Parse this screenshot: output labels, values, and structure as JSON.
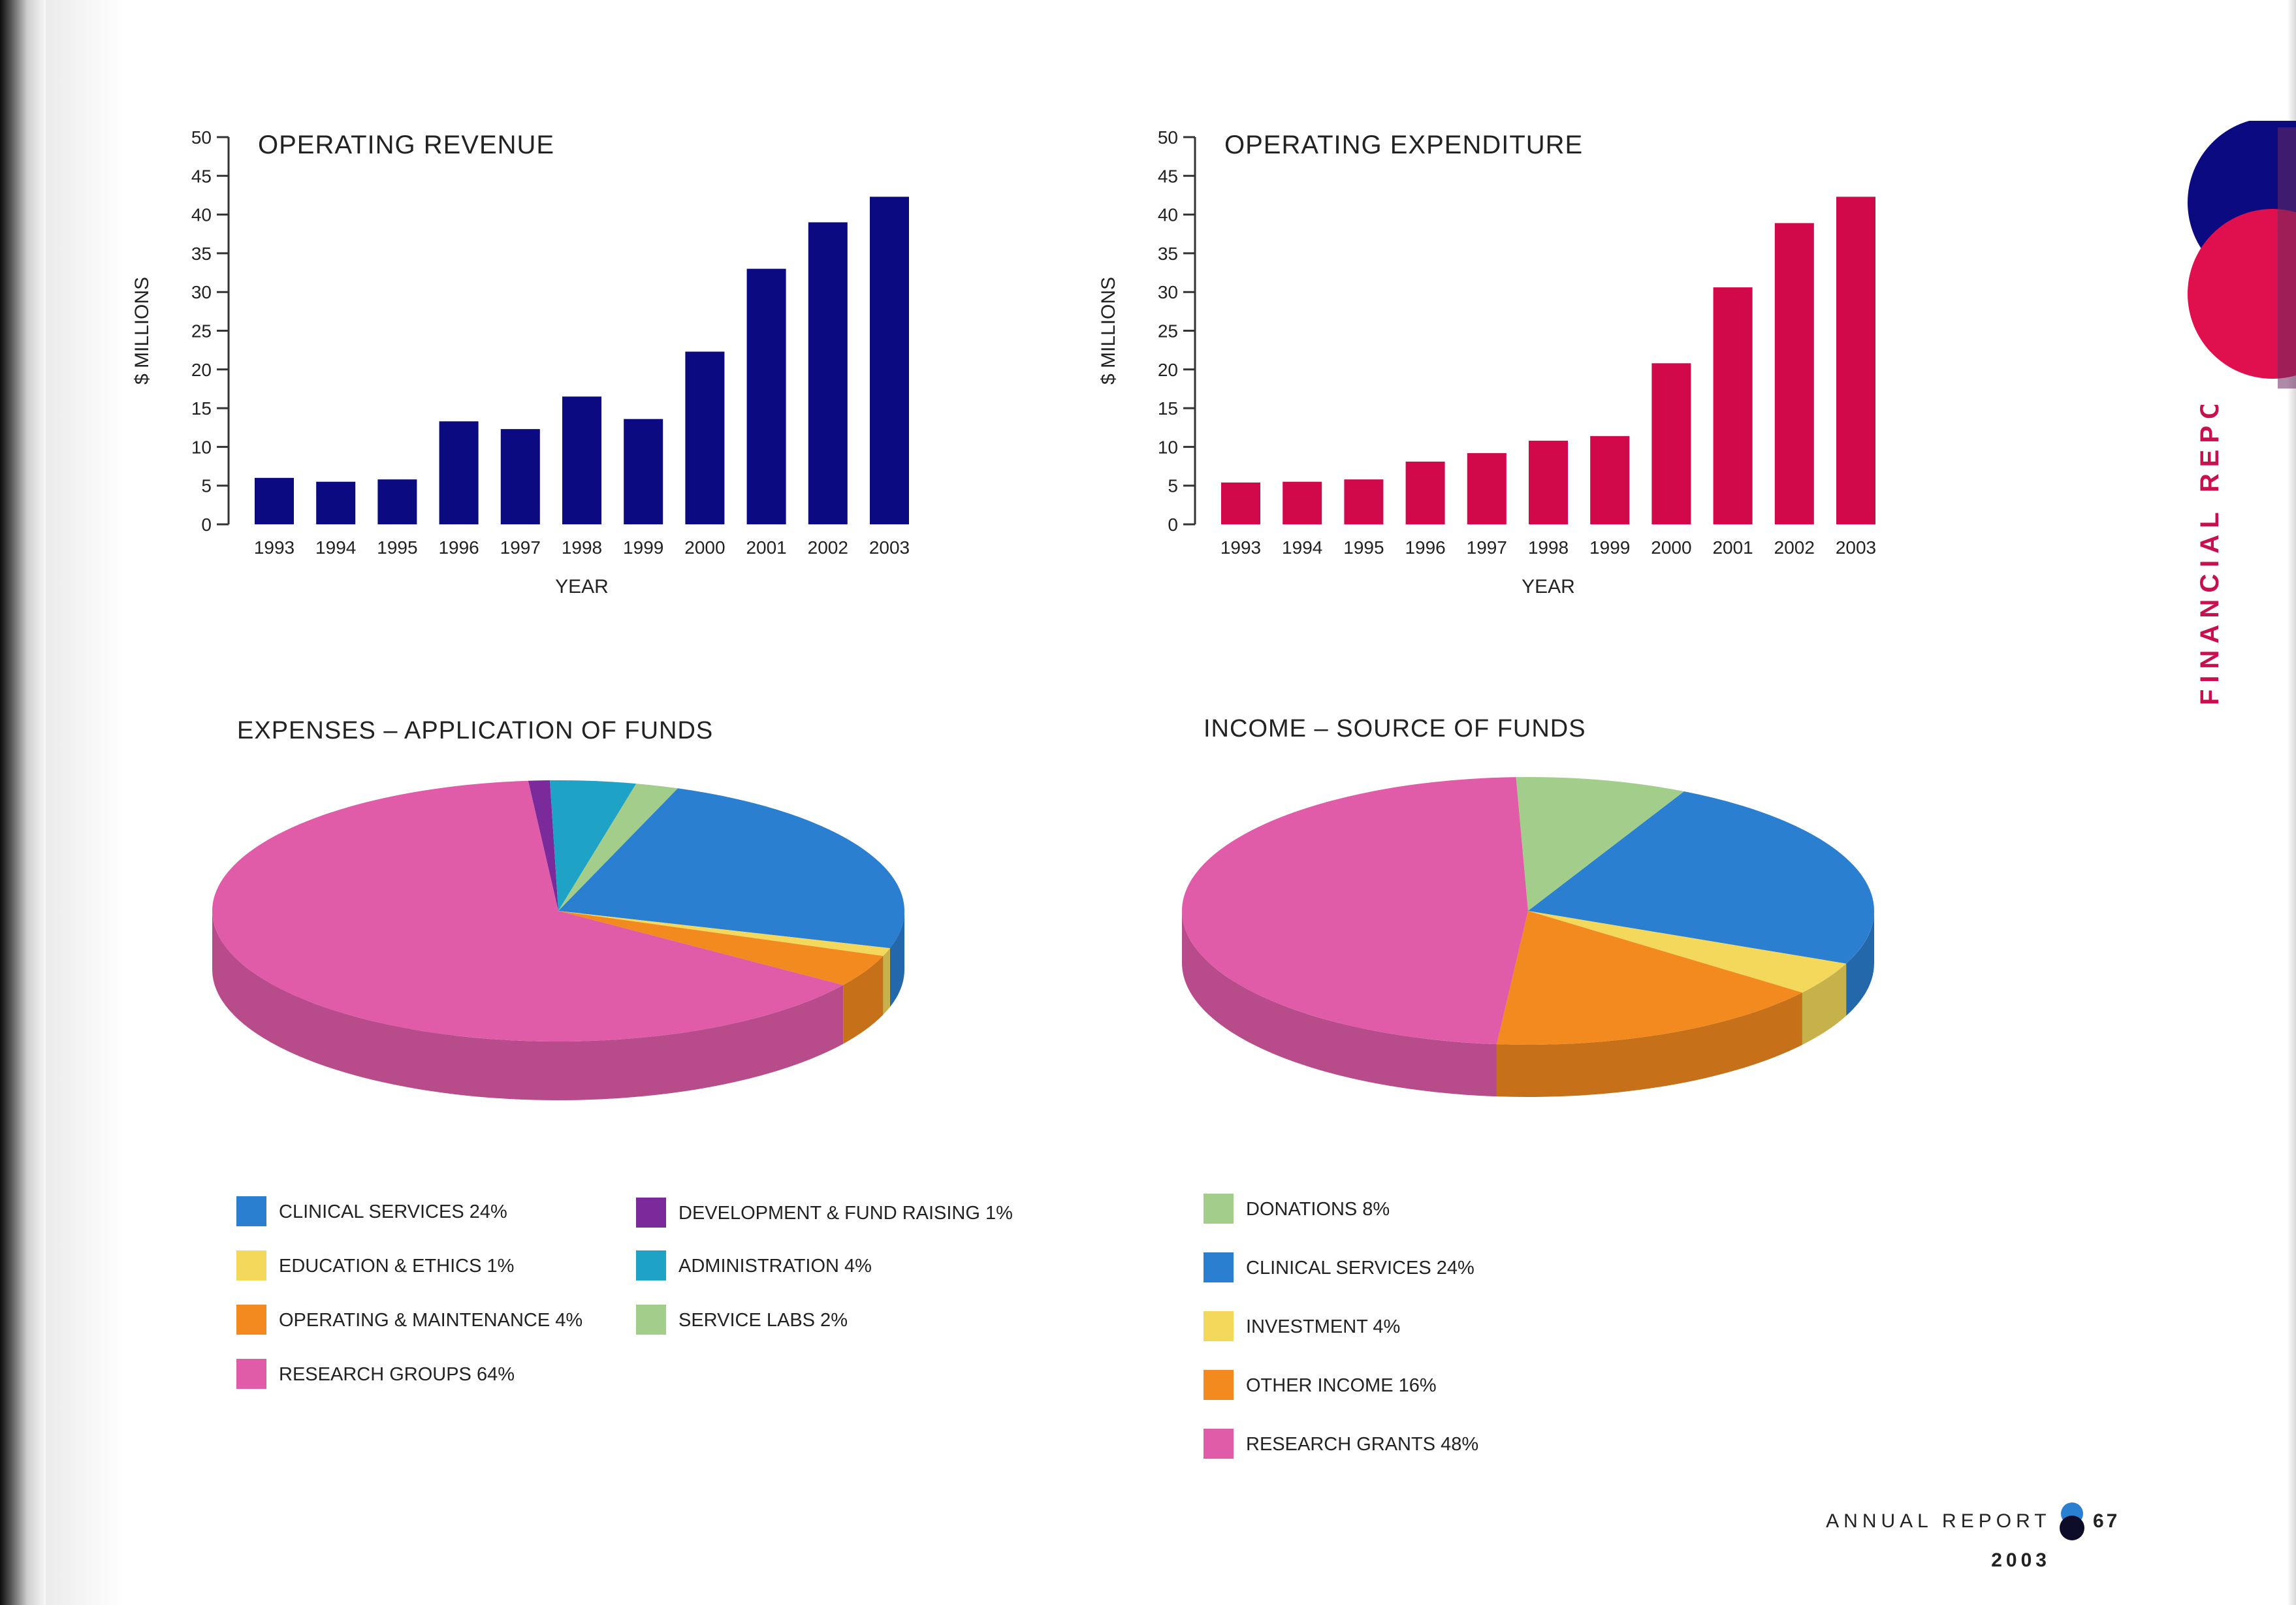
{
  "page": {
    "side_title": "FINANCIAL REPORT",
    "footer_label": "ANNUAL REPORT",
    "footer_year": "2003",
    "page_number": "67"
  },
  "colors": {
    "revenue_bar": "#0b0a80",
    "expenditure_bar": "#d1094a",
    "side_title": "#c8104f",
    "axis": "#333333"
  },
  "chart_data": [
    {
      "id": "operating-revenue",
      "type": "bar",
      "title": "OPERATING REVENUE",
      "xlabel": "YEAR",
      "ylabel": "$ MILLIONS",
      "categories": [
        "1993",
        "1994",
        "1995",
        "1996",
        "1997",
        "1998",
        "1999",
        "2000",
        "2001",
        "2002",
        "2003"
      ],
      "values": [
        6,
        5.5,
        5.8,
        13.3,
        12.3,
        16.5,
        13.6,
        22.3,
        33,
        39,
        42.3
      ],
      "ylim": [
        0,
        50
      ],
      "yticks": [
        0,
        5,
        10,
        15,
        20,
        25,
        30,
        35,
        40,
        45,
        50
      ],
      "color": "#0b0a80",
      "grid": false
    },
    {
      "id": "operating-expenditure",
      "type": "bar",
      "title": "OPERATING EXPENDITURE",
      "xlabel": "YEAR",
      "ylabel": "$ MILLIONS",
      "categories": [
        "1993",
        "1994",
        "1995",
        "1996",
        "1997",
        "1998",
        "1999",
        "2000",
        "2001",
        "2002",
        "2003"
      ],
      "values": [
        5.4,
        5.5,
        5.8,
        8.1,
        9.2,
        10.8,
        11.4,
        20.8,
        30.6,
        38.9,
        42.3
      ],
      "ylim": [
        0,
        50
      ],
      "yticks": [
        0,
        5,
        10,
        15,
        20,
        25,
        30,
        35,
        40,
        45,
        50
      ],
      "color": "#d1094a",
      "grid": false
    },
    {
      "id": "expenses",
      "type": "pie",
      "title": "EXPENSES – APPLICATION OF FUNDS",
      "slices": [
        {
          "label": "DEVELOPMENT & FUND RAISING",
          "value": 1,
          "color": "#7a2a9a"
        },
        {
          "label": "ADMINISTRATION",
          "value": 4,
          "color": "#1ea3c6"
        },
        {
          "label": "SERVICE LABS",
          "value": 2,
          "color": "#a3cd8a"
        },
        {
          "label": "CLINICAL SERVICES",
          "value": 24,
          "color": "#2a7fd0"
        },
        {
          "label": "EDUCATION & ETHICS",
          "value": 1,
          "color": "#f3d85c"
        },
        {
          "label": "OPERATING & MAINTENANCE",
          "value": 4,
          "color": "#f28a1f"
        },
        {
          "label": "RESEARCH GROUPS",
          "value": 64,
          "color": "#e05ba8"
        }
      ],
      "legend": [
        {
          "text": "CLINICAL SERVICES 24%",
          "color": "#2a7fd0"
        },
        {
          "text": "EDUCATION & ETHICS 1%",
          "color": "#f3d85c"
        },
        {
          "text": "OPERATING & MAINTENANCE 4%",
          "color": "#f28a1f"
        },
        {
          "text": "RESEARCH GROUPS 64%",
          "color": "#e05ba8"
        },
        {
          "text": "DEVELOPMENT & FUND RAISING 1%",
          "color": "#7a2a9a"
        },
        {
          "text": "ADMINISTRATION 4%",
          "color": "#1ea3c6"
        },
        {
          "text": "SERVICE LABS 2%",
          "color": "#a3cd8a"
        }
      ]
    },
    {
      "id": "income",
      "type": "pie",
      "title": "INCOME – SOURCE OF FUNDS",
      "slices": [
        {
          "label": "DONATIONS",
          "value": 8,
          "color": "#a3cd8a"
        },
        {
          "label": "CLINICAL SERVICES",
          "value": 24,
          "color": "#2a7fd0"
        },
        {
          "label": "INVESTMENT",
          "value": 4,
          "color": "#f3d85c"
        },
        {
          "label": "OTHER INCOME",
          "value": 16,
          "color": "#f28a1f"
        },
        {
          "label": "RESEARCH GRANTS",
          "value": 48,
          "color": "#e05ba8"
        }
      ],
      "legend": [
        {
          "text": "DONATIONS 8%",
          "color": "#a3cd8a"
        },
        {
          "text": "CLINICAL SERVICES 24%",
          "color": "#2a7fd0"
        },
        {
          "text": "INVESTMENT 4%",
          "color": "#f3d85c"
        },
        {
          "text": "OTHER INCOME 16%",
          "color": "#f28a1f"
        },
        {
          "text": "RESEARCH GRANTS 48%",
          "color": "#e05ba8"
        }
      ]
    }
  ]
}
